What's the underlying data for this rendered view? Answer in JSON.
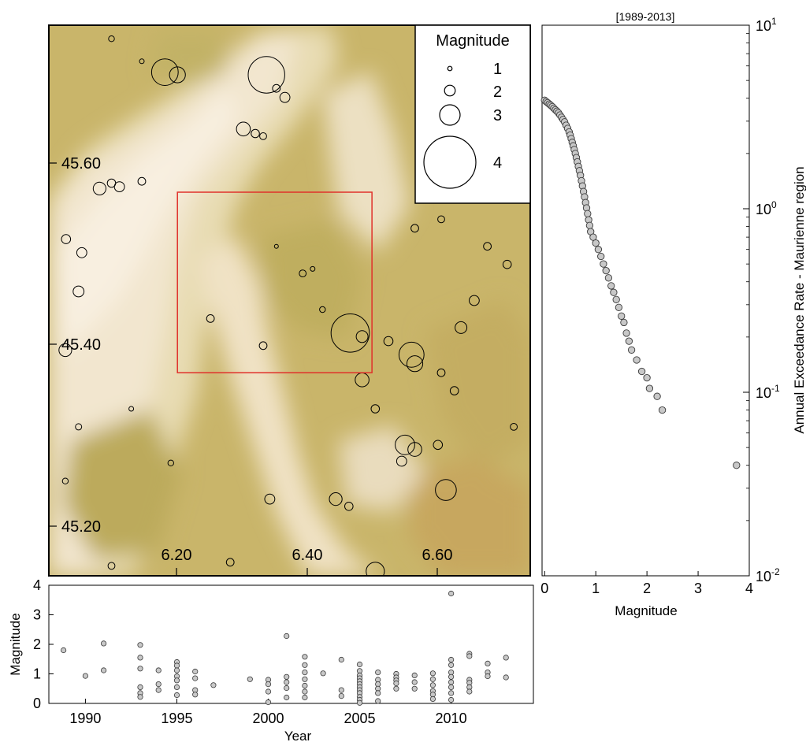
{
  "chart_data": [
    {
      "type": "map-scatter",
      "lon_ticks": [
        "6.20",
        "6.40",
        "6.60"
      ],
      "lat_ticks": [
        "45.60",
        "45.40",
        "45.20"
      ],
      "lon_range": [
        6.005,
        6.735
      ],
      "lat_range": [
        45.135,
        45.745
      ],
      "colors": {
        "low": "#f6ead6",
        "high": "#b7a455",
        "box": "#e0302a"
      },
      "study_box": {
        "lon": [
          6.2,
          6.495
        ],
        "lat": [
          45.36,
          45.56
        ]
      },
      "legend": {
        "title": "Magnitude",
        "entries": [
          {
            "label": "1",
            "magnitude": 1
          },
          {
            "label": "2",
            "magnitude": 2
          },
          {
            "label": "3",
            "magnitude": 3
          },
          {
            "label": "4",
            "magnitude": 4
          }
        ]
      },
      "events": [
        [
          6.1,
          45.73,
          1.2
        ],
        [
          6.146,
          45.705,
          1.0
        ],
        [
          6.181,
          45.693,
          3.2
        ],
        [
          6.2,
          45.69,
          2.4
        ],
        [
          6.335,
          45.69,
          3.8
        ],
        [
          6.35,
          45.675,
          1.5
        ],
        [
          6.363,
          45.665,
          1.8
        ],
        [
          6.3,
          45.63,
          2.2
        ],
        [
          6.318,
          45.625,
          1.6
        ],
        [
          6.33,
          45.622,
          1.4
        ],
        [
          6.082,
          45.564,
          2.1
        ],
        [
          6.1,
          45.57,
          1.6
        ],
        [
          6.112,
          45.566,
          1.8
        ],
        [
          6.146,
          45.572,
          1.5
        ],
        [
          6.031,
          45.508,
          1.7
        ],
        [
          6.055,
          45.493,
          1.8
        ],
        [
          6.05,
          45.45,
          1.9
        ],
        [
          6.03,
          45.385,
          2.1
        ],
        [
          6.462,
          45.404,
          3.9
        ],
        [
          6.48,
          45.4,
          2.0
        ],
        [
          6.52,
          45.395,
          1.7
        ],
        [
          6.555,
          45.38,
          3.1
        ],
        [
          6.56,
          45.37,
          2.4
        ],
        [
          6.6,
          45.36,
          1.5
        ],
        [
          6.62,
          45.34,
          1.6
        ],
        [
          6.48,
          45.352,
          2.2
        ],
        [
          6.5,
          45.32,
          1.6
        ],
        [
          6.545,
          45.28,
          2.7
        ],
        [
          6.56,
          45.275,
          2.2
        ],
        [
          6.54,
          45.262,
          1.8
        ],
        [
          6.595,
          45.28,
          1.7
        ],
        [
          6.607,
          45.23,
          2.8
        ],
        [
          6.44,
          45.22,
          2.1
        ],
        [
          6.46,
          45.212,
          1.6
        ],
        [
          6.5,
          45.14,
          2.6
        ],
        [
          6.34,
          45.22,
          1.8
        ],
        [
          6.28,
          45.15,
          1.5
        ],
        [
          6.1,
          45.146,
          1.4
        ],
        [
          6.63,
          45.41,
          2.0
        ],
        [
          6.65,
          45.44,
          1.8
        ],
        [
          6.67,
          45.5,
          1.5
        ],
        [
          6.6,
          45.53,
          1.4
        ],
        [
          6.56,
          45.52,
          1.5
        ],
        [
          6.7,
          45.48,
          1.6
        ],
        [
          6.71,
          45.3,
          1.4
        ],
        [
          6.03,
          45.24,
          1.2
        ],
        [
          6.05,
          45.3,
          1.3
        ],
        [
          6.13,
          45.32,
          1.0
        ],
        [
          6.19,
          45.26,
          1.2
        ],
        [
          6.25,
          45.42,
          1.5
        ],
        [
          6.33,
          45.39,
          1.5
        ],
        [
          6.39,
          45.47,
          1.4
        ],
        [
          6.42,
          45.43,
          1.2
        ],
        [
          6.405,
          45.475,
          1.0
        ],
        [
          6.35,
          45.5,
          0.8
        ]
      ],
      "source_view": "map of Maurienne region seismicity"
    },
    {
      "type": "scatter",
      "title": "[1989-2013]",
      "xlabel": "Magnitude",
      "ylabel": "Annual Exceedance Rate - Maurienne region",
      "x_ticks": [
        "0",
        "1",
        "2",
        "3",
        "4"
      ],
      "xlim": [
        -0.05,
        4
      ],
      "ylim": [
        0.01,
        10
      ],
      "y_scale": "log",
      "y_ticks": [
        {
          "value": 0.01,
          "base": "10",
          "exp": "-2"
        },
        {
          "value": 0.1,
          "base": "10",
          "exp": "-1"
        },
        {
          "value": 1,
          "base": "10",
          "exp": "0"
        },
        {
          "value": 10,
          "base": "10",
          "exp": "1"
        }
      ],
      "marker_color": "#c8c8c8",
      "points": [
        [
          0.0,
          3.9
        ],
        [
          0.03,
          3.84
        ],
        [
          0.06,
          3.78
        ],
        [
          0.09,
          3.72
        ],
        [
          0.12,
          3.66
        ],
        [
          0.15,
          3.6
        ],
        [
          0.18,
          3.53
        ],
        [
          0.21,
          3.46
        ],
        [
          0.24,
          3.4
        ],
        [
          0.27,
          3.33
        ],
        [
          0.3,
          3.24
        ],
        [
          0.33,
          3.15
        ],
        [
          0.36,
          3.06
        ],
        [
          0.39,
          2.97
        ],
        [
          0.42,
          2.85
        ],
        [
          0.45,
          2.74
        ],
        [
          0.48,
          2.62
        ],
        [
          0.5,
          2.52
        ],
        [
          0.52,
          2.41
        ],
        [
          0.54,
          2.3
        ],
        [
          0.56,
          2.2
        ],
        [
          0.58,
          2.1
        ],
        [
          0.6,
          2.0
        ],
        [
          0.62,
          1.9
        ],
        [
          0.64,
          1.8
        ],
        [
          0.66,
          1.7
        ],
        [
          0.68,
          1.61
        ],
        [
          0.7,
          1.52
        ],
        [
          0.72,
          1.42
        ],
        [
          0.74,
          1.33
        ],
        [
          0.76,
          1.24
        ],
        [
          0.78,
          1.16
        ],
        [
          0.8,
          1.08
        ],
        [
          0.82,
          1.01
        ],
        [
          0.84,
          0.94
        ],
        [
          0.86,
          0.87
        ],
        [
          0.88,
          0.81
        ],
        [
          0.9,
          0.75
        ],
        [
          0.95,
          0.7
        ],
        [
          1.0,
          0.65
        ],
        [
          1.05,
          0.6
        ],
        [
          1.1,
          0.55
        ],
        [
          1.15,
          0.5
        ],
        [
          1.2,
          0.46
        ],
        [
          1.25,
          0.42
        ],
        [
          1.3,
          0.38
        ],
        [
          1.35,
          0.35
        ],
        [
          1.4,
          0.32
        ],
        [
          1.45,
          0.29
        ],
        [
          1.5,
          0.26
        ],
        [
          1.55,
          0.24
        ],
        [
          1.6,
          0.21
        ],
        [
          1.65,
          0.19
        ],
        [
          1.7,
          0.17
        ],
        [
          1.8,
          0.15
        ],
        [
          1.9,
          0.13
        ],
        [
          2.0,
          0.12
        ],
        [
          2.05,
          0.105
        ],
        [
          2.2,
          0.095
        ],
        [
          2.3,
          0.08
        ],
        [
          3.75,
          0.04
        ]
      ]
    },
    {
      "type": "scatter",
      "xlabel": "Year",
      "ylabel": "Magnitude",
      "x_ticks": [
        "1990",
        "1995",
        "2000",
        "2005",
        "2010"
      ],
      "y_ticks": [
        "0",
        "1",
        "2",
        "3",
        "4"
      ],
      "xlim": [
        1988,
        2014.5
      ],
      "ylim": [
        0,
        4
      ],
      "marker_color": "#c8c8c8",
      "points": [
        [
          1988.8,
          1.8
        ],
        [
          1990.0,
          0.93
        ],
        [
          1991.0,
          2.03
        ],
        [
          1991.0,
          1.12
        ],
        [
          1993.0,
          1.98
        ],
        [
          1993.0,
          1.55
        ],
        [
          1993.0,
          1.18
        ],
        [
          1993.0,
          0.55
        ],
        [
          1993.0,
          0.35
        ],
        [
          1993.0,
          0.22
        ],
        [
          1994.0,
          1.12
        ],
        [
          1994.0,
          0.65
        ],
        [
          1994.0,
          0.45
        ],
        [
          1995.0,
          1.4
        ],
        [
          1995.0,
          1.28
        ],
        [
          1995.0,
          1.12
        ],
        [
          1995.0,
          0.92
        ],
        [
          1995.0,
          0.78
        ],
        [
          1995.0,
          0.55
        ],
        [
          1995.0,
          0.28
        ],
        [
          1996.0,
          1.08
        ],
        [
          1996.0,
          0.85
        ],
        [
          1996.0,
          0.45
        ],
        [
          1996.0,
          0.3
        ],
        [
          1997.0,
          0.62
        ],
        [
          1999.0,
          0.82
        ],
        [
          2000.0,
          0.8
        ],
        [
          2000.0,
          0.65
        ],
        [
          2000.0,
          0.4
        ],
        [
          2000.0,
          0.04
        ],
        [
          2001.0,
          2.28
        ],
        [
          2001.0,
          0.9
        ],
        [
          2001.0,
          0.72
        ],
        [
          2001.0,
          0.52
        ],
        [
          2001.0,
          0.2
        ],
        [
          2002.0,
          1.58
        ],
        [
          2002.0,
          1.3
        ],
        [
          2002.0,
          1.05
        ],
        [
          2002.0,
          0.82
        ],
        [
          2002.0,
          0.6
        ],
        [
          2002.0,
          0.4
        ],
        [
          2002.0,
          0.2
        ],
        [
          2003.0,
          1.02
        ],
        [
          2004.0,
          1.48
        ],
        [
          2004.0,
          0.45
        ],
        [
          2004.0,
          0.25
        ],
        [
          2005.0,
          1.32
        ],
        [
          2005.0,
          1.1
        ],
        [
          2005.0,
          0.95
        ],
        [
          2005.0,
          0.85
        ],
        [
          2005.0,
          0.75
        ],
        [
          2005.0,
          0.65
        ],
        [
          2005.0,
          0.55
        ],
        [
          2005.0,
          0.45
        ],
        [
          2005.0,
          0.35
        ],
        [
          2005.0,
          0.22
        ],
        [
          2005.0,
          0.12
        ],
        [
          2005.0,
          0.02
        ],
        [
          2006.0,
          1.05
        ],
        [
          2006.0,
          0.8
        ],
        [
          2006.0,
          0.65
        ],
        [
          2006.0,
          0.5
        ],
        [
          2006.0,
          0.35
        ],
        [
          2006.0,
          0.08
        ],
        [
          2007.0,
          1.0
        ],
        [
          2007.0,
          0.88
        ],
        [
          2007.0,
          0.78
        ],
        [
          2007.0,
          0.68
        ],
        [
          2007.0,
          0.5
        ],
        [
          2008.0,
          0.95
        ],
        [
          2008.0,
          0.72
        ],
        [
          2008.0,
          0.5
        ],
        [
          2009.0,
          1.02
        ],
        [
          2009.0,
          0.82
        ],
        [
          2009.0,
          0.62
        ],
        [
          2009.0,
          0.42
        ],
        [
          2009.0,
          0.3
        ],
        [
          2009.0,
          0.15
        ],
        [
          2010.0,
          3.72
        ],
        [
          2010.0,
          1.48
        ],
        [
          2010.0,
          1.3
        ],
        [
          2010.0,
          1.05
        ],
        [
          2010.0,
          0.9
        ],
        [
          2010.0,
          0.72
        ],
        [
          2010.0,
          0.55
        ],
        [
          2010.0,
          0.35
        ],
        [
          2010.0,
          0.12
        ],
        [
          2011.0,
          1.68
        ],
        [
          2011.0,
          1.6
        ],
        [
          2011.0,
          0.8
        ],
        [
          2011.0,
          0.7
        ],
        [
          2011.0,
          0.55
        ],
        [
          2011.0,
          0.4
        ],
        [
          2012.0,
          1.35
        ],
        [
          2012.0,
          1.05
        ],
        [
          2012.0,
          0.92
        ],
        [
          2013.0,
          1.55
        ],
        [
          2013.0,
          0.88
        ]
      ]
    }
  ]
}
